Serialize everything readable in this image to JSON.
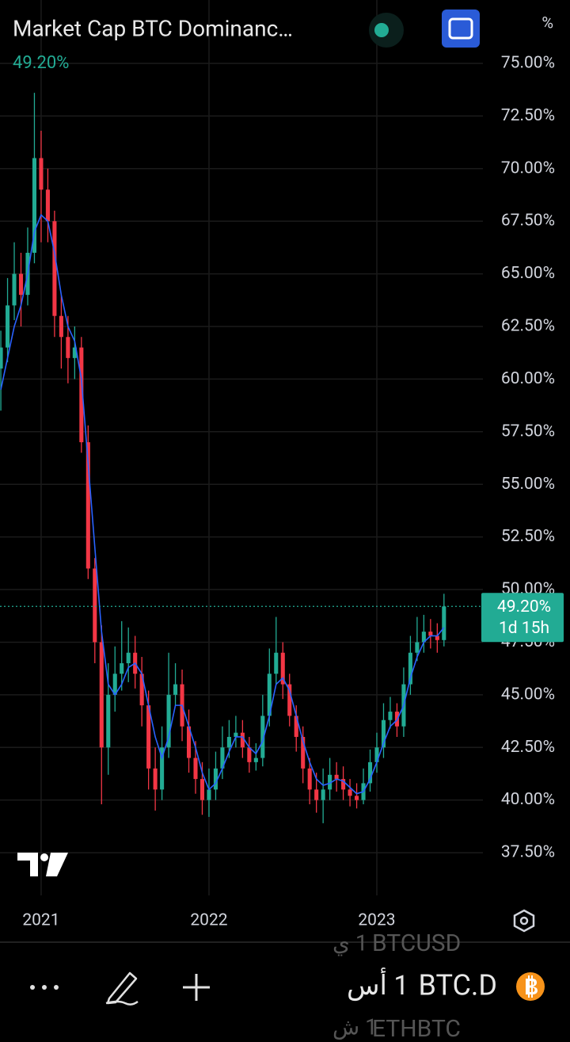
{
  "chart_data": {
    "type": "candlestick",
    "title": "Market Cap BTC Dominanc…",
    "legend_value": "49.20%",
    "unit": "%",
    "up_color": "#22ab94",
    "down_color": "#f23645",
    "x": [
      2020.76,
      2020.8,
      2020.84,
      2020.88,
      2020.92,
      2020.96,
      2021,
      2021.04,
      2021.08,
      2021.12,
      2021.16,
      2021.2,
      2021.24,
      2021.28,
      2021.32,
      2021.36,
      2021.4,
      2021.44,
      2021.48,
      2021.52,
      2021.56,
      2021.6,
      2021.64,
      2021.68,
      2021.72,
      2021.76,
      2021.8,
      2021.84,
      2021.88,
      2021.92,
      2021.96,
      2022,
      2022.04,
      2022.08,
      2022.12,
      2022.16,
      2022.2,
      2022.24,
      2022.28,
      2022.32,
      2022.36,
      2022.4,
      2022.44,
      2022.48,
      2022.52,
      2022.56,
      2022.6,
      2022.64,
      2022.68,
      2022.72,
      2022.76,
      2022.8,
      2022.84,
      2022.88,
      2022.92,
      2022.96,
      2023,
      2023.04,
      2023.08,
      2023.12,
      2023.16,
      2023.2,
      2023.24,
      2023.28,
      2023.32,
      2023.36,
      2023.4
    ],
    "open": [
      60.5,
      61.5,
      63.5,
      65.0,
      64.0,
      66.0,
      70.5,
      69.0,
      67.5,
      63.0,
      62.0,
      61.0,
      61.5,
      57.0,
      51.0,
      47.5,
      42.5,
      45.0,
      46.0,
      46.5,
      47.0,
      46.0,
      44.5,
      41.5,
      40.5,
      42.5,
      45.0,
      45.5,
      43.5,
      42.0,
      41.0,
      40.0,
      40.5,
      41.5,
      42.5,
      43.0,
      43.2,
      42.5,
      41.8,
      42.0,
      44.0,
      46.0,
      47.0,
      45.5,
      44.0,
      43.0,
      41.5,
      40.5,
      40.0,
      40.5,
      41.2,
      41.0,
      40.5,
      40.2,
      40.0,
      40.8,
      41.8,
      42.5,
      43.8,
      44.2,
      43.5,
      45.5,
      47.0,
      47.5,
      48.0,
      47.8,
      47.6
    ],
    "high": [
      62.3,
      64.8,
      66.5,
      66.0,
      67.2,
      73.6,
      71.8,
      70.0,
      68.0,
      64.0,
      63.0,
      62.5,
      62.0,
      57.8,
      51.5,
      48.3,
      46.5,
      47.3,
      48.5,
      48.2,
      47.8,
      46.8,
      45.2,
      42.5,
      43.5,
      47.0,
      46.5,
      46.2,
      44.3,
      42.8,
      41.8,
      41.5,
      42.3,
      43.5,
      43.8,
      44.0,
      43.8,
      43.0,
      42.7,
      45.0,
      47.2,
      48.7,
      47.5,
      46.0,
      44.5,
      43.5,
      42.0,
      41.3,
      41.5,
      42.0,
      41.8,
      41.6,
      41.0,
      40.8,
      41.5,
      42.4,
      43.2,
      44.6,
      44.9,
      44.6,
      46.3,
      47.8,
      48.7,
      48.8,
      48.6,
      48.4,
      49.8
    ],
    "low": [
      58.5,
      60.8,
      62.8,
      62.5,
      63.5,
      65.5,
      66.5,
      66.5,
      62.0,
      60.5,
      59.8,
      60.0,
      56.5,
      50.5,
      46.5,
      39.8,
      41.2,
      44.2,
      45.2,
      45.6,
      45.3,
      43.5,
      40.5,
      39.5,
      40.0,
      42.0,
      44.5,
      42.8,
      41.3,
      40.3,
      39.3,
      39.2,
      40.0,
      41.0,
      42.0,
      42.5,
      42.0,
      41.3,
      41.4,
      41.6,
      43.5,
      45.5,
      44.8,
      43.5,
      42.3,
      40.8,
      39.8,
      39.4,
      38.9,
      40.0,
      40.4,
      40.0,
      39.7,
      39.6,
      39.8,
      40.4,
      41.3,
      42.0,
      43.4,
      43.0,
      43.0,
      45.0,
      46.6,
      47.0,
      47.2,
      47.0,
      47.3
    ],
    "close": [
      61.5,
      63.5,
      65.0,
      64.0,
      66.0,
      70.5,
      69.0,
      67.5,
      63.0,
      62.0,
      61.0,
      61.5,
      57.0,
      51.0,
      47.5,
      42.5,
      45.0,
      46.0,
      46.5,
      47.0,
      46.0,
      44.5,
      41.5,
      40.5,
      42.5,
      45.0,
      45.5,
      43.5,
      42.0,
      41.0,
      40.0,
      40.5,
      41.5,
      42.5,
      43.0,
      43.2,
      42.5,
      41.8,
      42.0,
      44.0,
      46.0,
      47.0,
      45.5,
      44.0,
      43.0,
      41.5,
      40.5,
      40.0,
      40.5,
      41.2,
      41.0,
      40.5,
      40.2,
      40.0,
      40.8,
      41.8,
      42.5,
      43.8,
      44.2,
      43.5,
      45.5,
      47.0,
      47.5,
      48.0,
      47.8,
      47.6,
      49.2
    ],
    "ma": {
      "color": "#2962ff",
      "values": [
        59.5,
        61,
        62.5,
        63.5,
        65,
        67,
        67.8,
        67.5,
        66,
        64,
        62.5,
        61.8,
        60,
        56,
        52,
        48,
        45.5,
        45,
        45.5,
        46.3,
        46.5,
        46,
        44.5,
        43,
        42,
        43,
        44.5,
        44.5,
        43.5,
        42.5,
        41.3,
        40.5,
        40.8,
        41.5,
        42.3,
        43,
        43,
        42.5,
        42.2,
        42.8,
        44,
        45.5,
        45.8,
        45.2,
        44,
        42.8,
        41.8,
        41,
        40.7,
        40.8,
        41,
        40.9,
        40.6,
        40.3,
        40.4,
        41,
        41.8,
        42.7,
        43.5,
        43.8,
        44.5,
        45.8,
        46.8,
        47.5,
        47.8,
        47.8,
        48.2
      ]
    },
    "xlim": [
      2020.755,
      2023.632
    ],
    "ylim": [
      35.47,
      78.01
    ],
    "xticks": [
      2021,
      2022,
      2023
    ],
    "yticks": [
      {
        "value": 37.5,
        "label": "37.50%"
      },
      {
        "value": 40,
        "label": "40.00%"
      },
      {
        "value": 42.5,
        "label": "42.50%"
      },
      {
        "value": 45,
        "label": "45.00%"
      },
      {
        "value": 47.5,
        "label": "47.50%"
      },
      {
        "value": 50,
        "label": "50.00%"
      },
      {
        "value": 52.5,
        "label": "52.50%"
      },
      {
        "value": 55,
        "label": "55.00%"
      },
      {
        "value": 57.5,
        "label": "57.50%"
      },
      {
        "value": 60,
        "label": "60.00%"
      },
      {
        "value": 62.5,
        "label": "62.50%"
      },
      {
        "value": 65,
        "label": "65.00%"
      },
      {
        "value": 67.5,
        "label": "67.50%"
      },
      {
        "value": 70,
        "label": "70.00%"
      },
      {
        "value": 72.5,
        "label": "72.50%"
      },
      {
        "value": 75,
        "label": "75.00%"
      }
    ],
    "grid": true,
    "last": {
      "value": 49.2,
      "label": "49.20%"
    },
    "countdown": "1d 15h"
  },
  "toolbar": {
    "interval": "1 أس",
    "symbol": "BTC.D",
    "picker_above": [
      "1 ي",
      "BTCUSD"
    ],
    "picker_below": [
      "1 ش",
      "ETHBTC"
    ]
  }
}
